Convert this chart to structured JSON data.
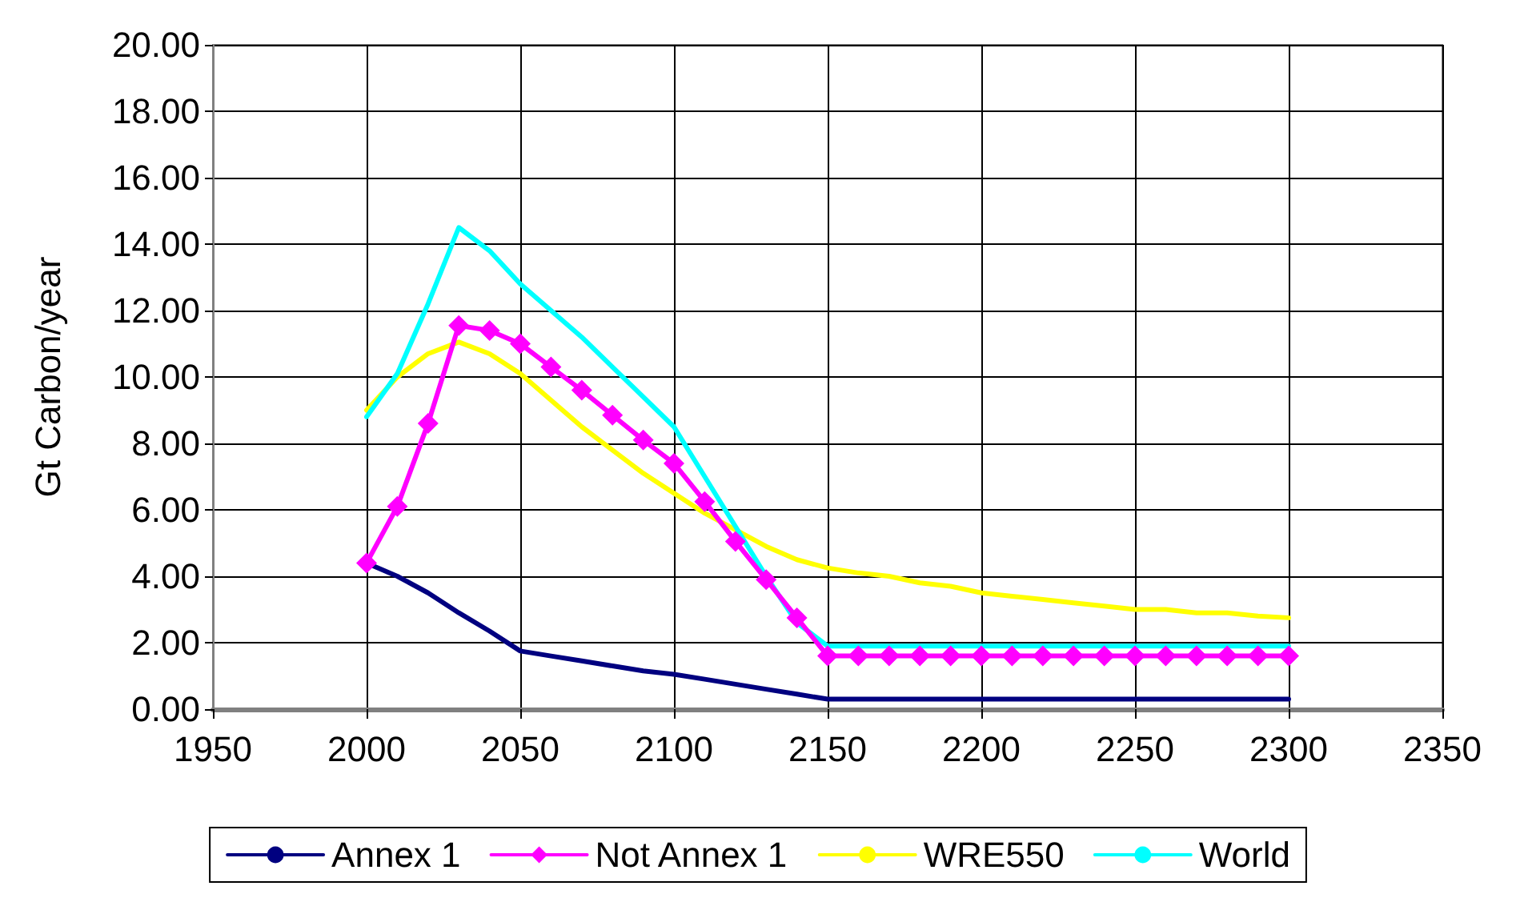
{
  "chart_data": {
    "type": "line",
    "ylabel": "Gt Carbon/year",
    "xlim": [
      1950,
      2350
    ],
    "xticks": [
      1950,
      2000,
      2050,
      2100,
      2150,
      2200,
      2250,
      2300,
      2350
    ],
    "ylim": [
      0,
      20
    ],
    "yticks": [
      {
        "value": 0,
        "label": "0.00"
      },
      {
        "value": 2,
        "label": "2.00"
      },
      {
        "value": 4,
        "label": "4.00"
      },
      {
        "value": 6,
        "label": "6.00"
      },
      {
        "value": 8,
        "label": "8.00"
      },
      {
        "value": 10,
        "label": "10.00"
      },
      {
        "value": 12,
        "label": "12.00"
      },
      {
        "value": 14,
        "label": "14.00"
      },
      {
        "value": 16,
        "label": "16.00"
      },
      {
        "value": 18,
        "label": "18.00"
      },
      {
        "value": 20,
        "label": "20.00"
      }
    ],
    "grid": true,
    "legend": "bottom",
    "x": [
      2000,
      2010,
      2020,
      2030,
      2040,
      2050,
      2060,
      2070,
      2080,
      2090,
      2100,
      2110,
      2120,
      2130,
      2140,
      2150,
      2160,
      2170,
      2180,
      2190,
      2200,
      2210,
      2220,
      2230,
      2240,
      2250,
      2260,
      2270,
      2280,
      2290,
      2300
    ],
    "series": [
      {
        "name": "Annex 1",
        "color": "#000080",
        "marker": "none",
        "values": [
          4.4,
          4.0,
          3.5,
          2.9,
          2.35,
          1.75,
          1.6,
          1.45,
          1.3,
          1.15,
          1.05,
          0.9,
          0.75,
          0.6,
          0.45,
          0.3,
          0.3,
          0.3,
          0.3,
          0.3,
          0.3,
          0.3,
          0.3,
          0.3,
          0.3,
          0.3,
          0.3,
          0.3,
          0.3,
          0.3,
          0.3
        ]
      },
      {
        "name": "Not Annex 1",
        "color": "#ff00ff",
        "marker": "diamond",
        "values": [
          4.4,
          6.1,
          8.6,
          11.55,
          11.4,
          11.0,
          10.3,
          9.6,
          8.85,
          8.1,
          7.4,
          6.25,
          5.05,
          3.9,
          2.75,
          1.6,
          1.6,
          1.6,
          1.6,
          1.6,
          1.6,
          1.6,
          1.6,
          1.6,
          1.6,
          1.6,
          1.6,
          1.6,
          1.6,
          1.6,
          1.6
        ]
      },
      {
        "name": "WRE550",
        "color": "#ffff00",
        "marker": "none",
        "values": [
          9.0,
          10.0,
          10.7,
          11.05,
          10.7,
          10.1,
          9.3,
          8.5,
          7.8,
          7.1,
          6.5,
          5.9,
          5.4,
          4.9,
          4.5,
          4.25,
          4.1,
          4.0,
          3.8,
          3.7,
          3.5,
          3.4,
          3.3,
          3.2,
          3.1,
          3.0,
          3.0,
          2.9,
          2.9,
          2.8,
          2.75
        ]
      },
      {
        "name": "World",
        "color": "#00ffff",
        "marker": "none",
        "values": [
          8.8,
          10.1,
          12.2,
          14.5,
          13.8,
          12.8,
          12.0,
          11.2,
          10.3,
          9.4,
          8.5,
          7.0,
          5.5,
          4.0,
          2.6,
          1.9,
          1.9,
          1.9,
          1.9,
          1.9,
          1.9,
          1.9,
          1.9,
          1.9,
          1.9,
          1.9,
          1.9,
          1.9,
          1.9,
          1.9,
          1.9
        ]
      }
    ]
  }
}
